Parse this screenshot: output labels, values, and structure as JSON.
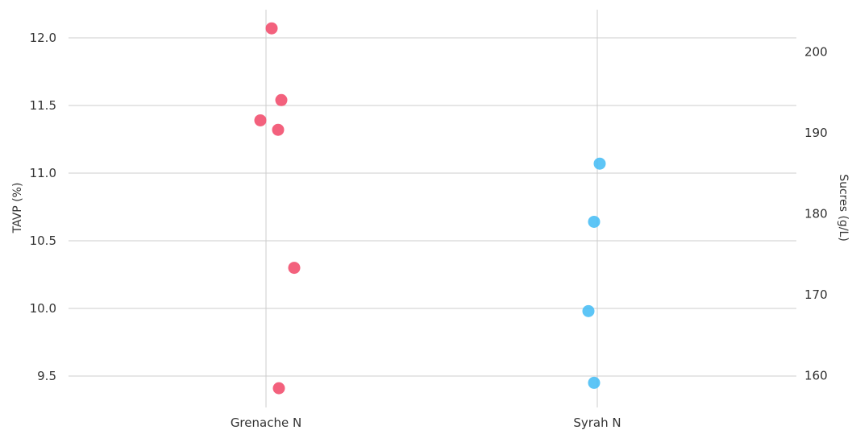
{
  "chart_data": {
    "type": "scatter",
    "categories": [
      "Grenache N",
      "Syrah N"
    ],
    "y_left": {
      "label": "TAVP (%)",
      "ticks": [
        "9.5",
        "10.0",
        "10.5",
        "11.0",
        "11.5",
        "12.0"
      ],
      "range": [
        9.25,
        12.2
      ]
    },
    "y_right": {
      "label": "Sucres (g/L)",
      "ticks": [
        "160",
        "170",
        "180",
        "190",
        "200"
      ],
      "range": [
        155.5,
        205.5
      ]
    },
    "series": [
      {
        "category": "Grenache N",
        "axis": "left",
        "color": "#f2506f",
        "points": [
          {
            "y": 12.07
          },
          {
            "y": 11.54
          },
          {
            "y": 11.39
          },
          {
            "y": 11.32
          },
          {
            "y": 10.3
          },
          {
            "y": 9.41
          }
        ]
      },
      {
        "category": "Syrah N",
        "axis": "left",
        "color": "#4bbff5",
        "points": [
          {
            "y": 11.07
          },
          {
            "y": 10.64
          },
          {
            "y": 9.98
          },
          {
            "y": 9.45
          }
        ]
      }
    ],
    "grid": true,
    "colors": {
      "grid": "#cccccc",
      "text": "#333333"
    }
  }
}
